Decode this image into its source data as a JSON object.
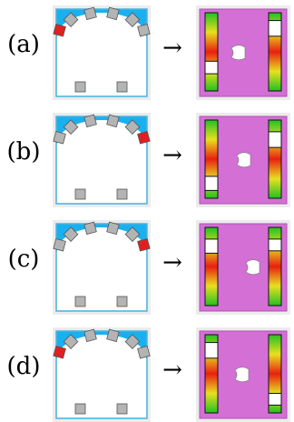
{
  "rows": [
    {
      "label": "(a)",
      "arrow": "→"
    },
    {
      "label": "(b)",
      "arrow": "→"
    },
    {
      "label": "(c)",
      "arrow": "→"
    },
    {
      "label": "(d)",
      "arrow": "→"
    }
  ]
}
